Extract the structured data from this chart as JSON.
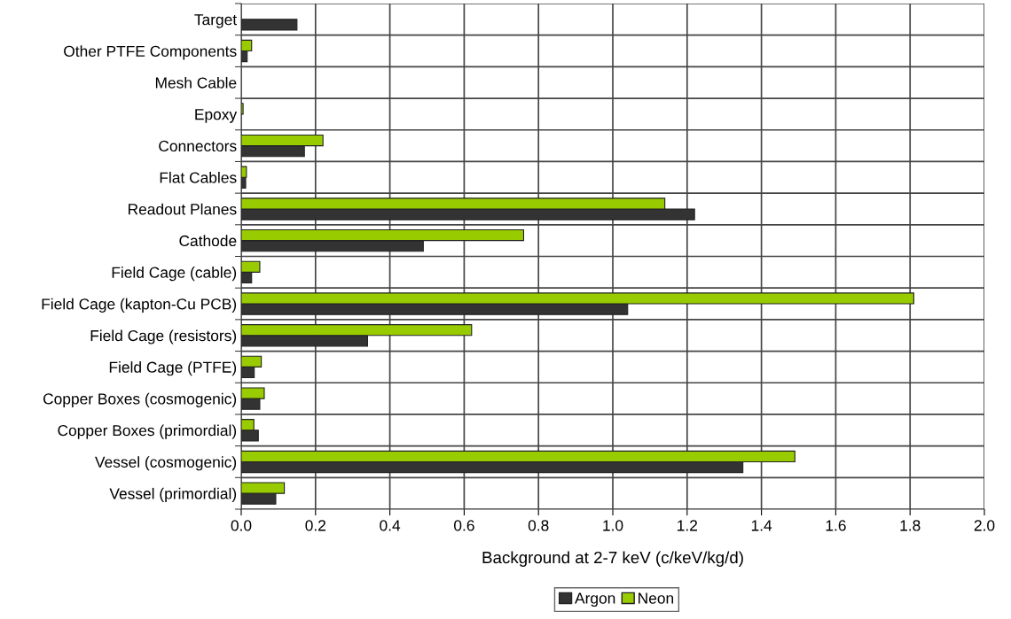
{
  "chart_data": {
    "type": "bar",
    "orientation": "horizontal",
    "xlabel": "Background at 2-7 keV (c/keV/kg/d)",
    "categories": [
      "Target",
      "Other PTFE Components",
      "Mesh Cable",
      "Epoxy",
      "Connectors",
      "Flat Cables",
      "Readout Planes",
      "Cathode",
      "Field Cage (cable)",
      "Field Cage (kapton-Cu PCB)",
      "Field Cage (resistors)",
      "Field Cage (PTFE)",
      "Copper Boxes (cosmogenic)",
      "Copper Boxes (primordial)",
      "Vessel (cosmogenic)",
      "Vessel (primordial)"
    ],
    "series": [
      {
        "name": "Argon",
        "color": "#333333",
        "values": [
          0.15,
          0.016,
          null,
          null,
          0.17,
          0.012,
          1.22,
          0.49,
          0.028,
          1.04,
          0.34,
          0.035,
          0.05,
          0.046,
          1.35,
          0.093
        ]
      },
      {
        "name": "Neon",
        "color": "#99cc00",
        "values": [
          null,
          0.028,
          null,
          0.005,
          0.22,
          0.014,
          1.14,
          0.76,
          0.05,
          1.81,
          0.62,
          0.054,
          0.062,
          0.034,
          1.49,
          0.116
        ]
      }
    ],
    "xlim": [
      0,
      2.0
    ],
    "xticks": [
      {
        "value": 0,
        "label": "0.0"
      },
      {
        "value": 0.2,
        "label": "0.2"
      },
      {
        "value": 0.4,
        "label": "0.4"
      },
      {
        "value": 0.6,
        "label": "0.6"
      },
      {
        "value": 0.8,
        "label": "0.8"
      },
      {
        "value": 1.0,
        "label": "1.0"
      },
      {
        "value": 1.2,
        "label": "1.2"
      },
      {
        "value": 1.4,
        "label": "1.4"
      },
      {
        "value": 1.6,
        "label": "1.6"
      },
      {
        "value": 1.8,
        "label": "1.8"
      },
      {
        "value": 2.0,
        "label": "2.0"
      }
    ],
    "grid": true,
    "legend": "bottom"
  }
}
